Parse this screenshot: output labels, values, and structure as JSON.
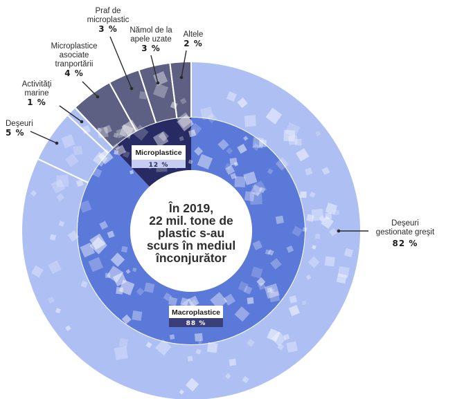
{
  "chart_data": {
    "type": "pie",
    "center_text": [
      "În 2019,",
      "22  mil. tone de",
      "plastic s-au",
      "scurs în mediul",
      "înconjurător"
    ],
    "inner_ring": [
      {
        "label": "Microplastice",
        "value_text": "12 %",
        "value": 12,
        "color": "#272a63"
      },
      {
        "label": "Macroplastice",
        "value_text": "88 %",
        "value": 88,
        "color": "#5b79d8"
      }
    ],
    "outer_ring": [
      {
        "label": [
          "Deşeuri",
          "gestionate greşit"
        ],
        "value_text": "82 %",
        "value": 82,
        "group": "Macroplastice",
        "color": "#aebff3"
      },
      {
        "label": [
          "Deşeuri"
        ],
        "value_text": "5 %",
        "value": 5,
        "group": "Macroplastice",
        "color": "#aebff3"
      },
      {
        "label": [
          "Activităţi",
          "marine"
        ],
        "value_text": "1 %",
        "value": 1,
        "group": "Macroplastice",
        "color": "#aebff3"
      },
      {
        "label": [
          "Microplastice",
          "asociate",
          "tranportării"
        ],
        "value_text": "4 %",
        "value": 4,
        "group": "Microplastice",
        "color": "#5d6083"
      },
      {
        "label": [
          "Praf de",
          "microplastic"
        ],
        "value_text": "3 %",
        "value": 3,
        "group": "Microplastice",
        "color": "#5d6083"
      },
      {
        "label": [
          "Nămol de la",
          "apele uzate"
        ],
        "value_text": "3 %",
        "value": 3,
        "group": "Microplastice",
        "color": "#5d6083"
      },
      {
        "label": [
          "Altele"
        ],
        "value_text": "2 %",
        "value": 2,
        "group": "Microplastice",
        "color": "#5d6083"
      }
    ]
  }
}
